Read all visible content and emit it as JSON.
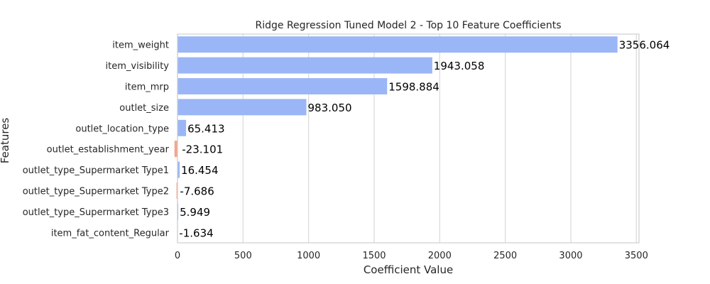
{
  "chart_data": {
    "type": "bar",
    "orientation": "horizontal",
    "title": "Ridge Regression Tuned Model 2 - Top 10 Feature Coefficients",
    "xlabel": "Coefficient Value",
    "ylabel": "Features",
    "xlim": [
      0,
      3520
    ],
    "xticks": [
      0,
      500,
      1000,
      1500,
      2000,
      2500,
      3000,
      3500
    ],
    "grid": "x",
    "legend": "none",
    "positive_color": "#9bb6f6",
    "negative_color": "#f4a58a",
    "categories": [
      "item_weight",
      "item_visibility",
      "item_mrp",
      "outlet_size",
      "outlet_location_type",
      "outlet_establishment_year",
      "outlet_type_Supermarket Type1",
      "outlet_type_Supermarket Type2",
      "outlet_type_Supermarket Type3",
      "item_fat_content_Regular"
    ],
    "values": [
      3356.064,
      1943.058,
      1598.884,
      983.05,
      65.413,
      -23.101,
      16.454,
      -7.686,
      5.949,
      -1.634
    ],
    "labels": [
      "3356.064",
      "1943.058",
      "1598.884",
      "983.050",
      "65.413",
      "-23.101",
      "16.454",
      "-7.686",
      "5.949",
      "-1.634"
    ]
  }
}
